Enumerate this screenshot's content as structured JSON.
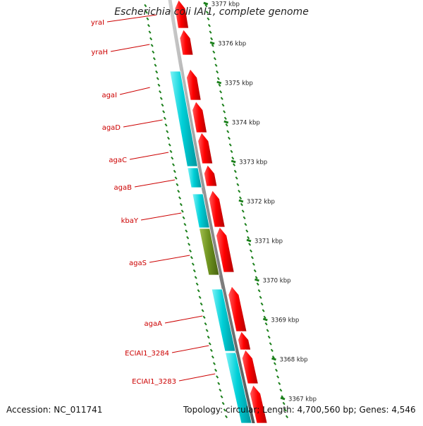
{
  "title": "Escherichia coli IAI1, complete genome",
  "footer": {
    "accession_label": "Accession:",
    "accession": "NC_011741",
    "topology_label": "Topology:",
    "topology": "circular",
    "length_label": "Length:",
    "length": "4,700,560 bp",
    "genes_label": "Genes:",
    "genes": "4,546"
  },
  "colors": {
    "forward_gene": "#ff0000",
    "reverse_gene": "#00c8d2",
    "other_feature": "#6a8f1c",
    "backbone": "#808080",
    "ticks": "#1a7f1a",
    "gene_label": "#cc0000"
  },
  "ruler_labels": [
    "3377 kbp",
    "3376 kbp",
    "3375 kbp",
    "3374 kbp",
    "3373 kbp",
    "3372 kbp",
    "3371 kbp",
    "3370 kbp",
    "3369 kbp",
    "3368 kbp",
    "3367 kbp"
  ],
  "gene_labels": [
    "yraI",
    "yraH",
    "agaI",
    "agaD",
    "agaC",
    "agaB",
    "kbaY",
    "agaS",
    "agaA",
    "ECIAI1_3284",
    "ECIAI1_3283"
  ]
}
